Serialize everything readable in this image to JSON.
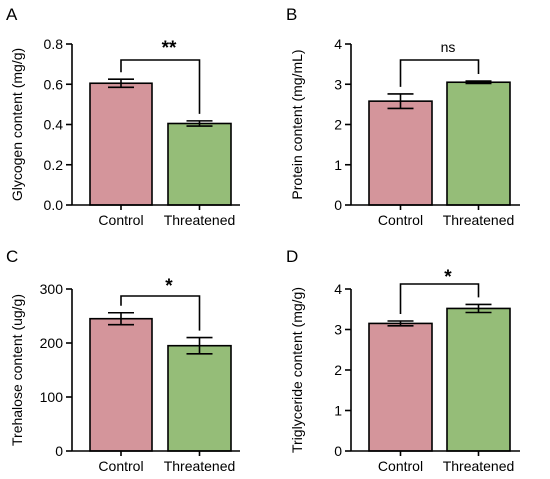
{
  "chart_data": [
    {
      "panel": "A",
      "type": "bar",
      "categories": [
        "Control",
        "Threatened"
      ],
      "values": [
        0.605,
        0.405
      ],
      "errors": [
        0.02,
        0.013
      ],
      "ylabel": "Glycogen content (mg/g)",
      "ylim": [
        0,
        0.8
      ],
      "yticks": [
        "0.0",
        "0.2",
        "0.4",
        "0.6",
        "0.8"
      ],
      "significance": "**",
      "colors": [
        "#d4959b",
        "#95bd78"
      ]
    },
    {
      "panel": "B",
      "type": "bar",
      "categories": [
        "Control",
        "Threatened"
      ],
      "values": [
        2.58,
        3.05
      ],
      "errors": [
        0.18,
        0.03
      ],
      "ylabel": "Protein content (mg/mL)",
      "ylim": [
        0,
        4
      ],
      "yticks": [
        "0",
        "1",
        "2",
        "3",
        "4"
      ],
      "significance": "ns",
      "colors": [
        "#d4959b",
        "#95bd78"
      ]
    },
    {
      "panel": "C",
      "type": "bar",
      "categories": [
        "Control",
        "Threatened"
      ],
      "values": [
        245,
        195
      ],
      "errors": [
        11,
        15
      ],
      "ylabel": "Trehalose content (ug/g)",
      "ylim": [
        0,
        300
      ],
      "yticks": [
        "0",
        "100",
        "200",
        "300"
      ],
      "significance": "*",
      "colors": [
        "#d4959b",
        "#95bd78"
      ]
    },
    {
      "panel": "D",
      "type": "bar",
      "categories": [
        "Control",
        "Threatened"
      ],
      "values": [
        3.15,
        3.52
      ],
      "errors": [
        0.06,
        0.1
      ],
      "ylabel": "Triglyceride content (mg/g)",
      "ylim": [
        0,
        4
      ],
      "yticks": [
        "0",
        "1",
        "2",
        "3",
        "4"
      ],
      "significance": "*",
      "colors": [
        "#d4959b",
        "#95bd78"
      ]
    }
  ]
}
